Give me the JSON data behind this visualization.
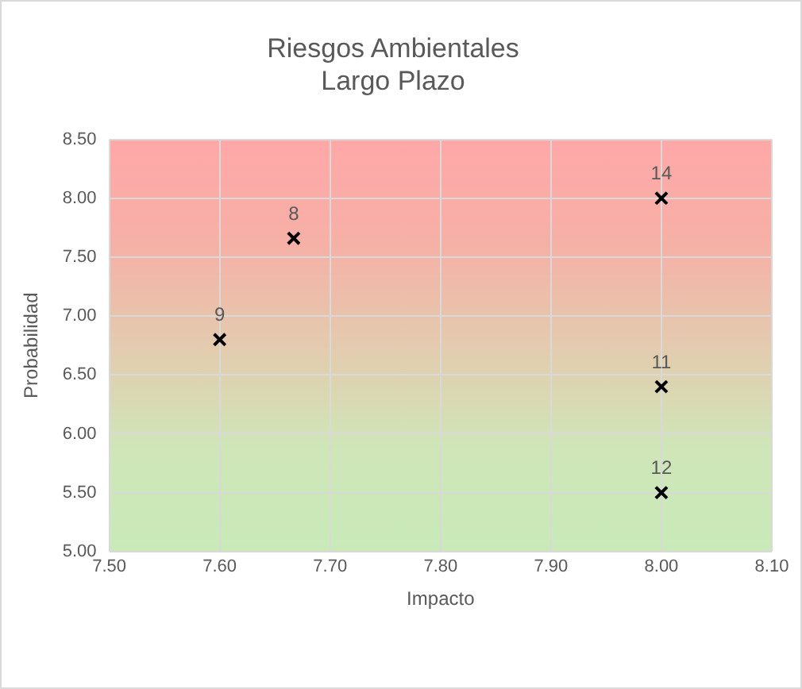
{
  "chart_data": {
    "type": "scatter",
    "title": "Riesgos Ambientales\nLargo Plazo",
    "xlabel": "Impacto",
    "ylabel": "Probabilidad",
    "x": [
      7.6,
      7.667,
      8.0,
      8.0,
      8.0
    ],
    "series": [
      {
        "color": "#000000",
        "values": [
          6.8,
          7.66,
          8.0,
          6.4,
          5.5
        ]
      }
    ],
    "xlim": [
      7.5,
      8.1
    ],
    "xticks": [
      {
        "value": 7.5,
        "label": "7.50"
      },
      {
        "value": 7.6,
        "label": "7.60"
      },
      {
        "value": 7.7,
        "label": "7.70"
      },
      {
        "value": 7.8,
        "label": "7.80"
      },
      {
        "value": 7.9,
        "label": "7.90"
      },
      {
        "value": 8.0,
        "label": "8.00"
      },
      {
        "value": 8.1,
        "label": "8.10"
      }
    ],
    "ylim": [
      5,
      8.5
    ],
    "yticks": [
      {
        "value": 5,
        "label": "5.00"
      },
      {
        "value": 5.5,
        "label": "5.50"
      },
      {
        "value": 6,
        "label": "6.00"
      },
      {
        "value": 6.5,
        "label": "6.50"
      },
      {
        "value": 7,
        "label": "7.00"
      },
      {
        "value": 7.5,
        "label": "7.50"
      },
      {
        "value": 8,
        "label": "8.00"
      },
      {
        "value": 8.5,
        "label": "8.50"
      }
    ],
    "annotations": [
      {
        "text": "9",
        "x": 7.6,
        "y": 6.8
      },
      {
        "text": "8",
        "x": 7.667,
        "y": 7.66
      },
      {
        "text": "14",
        "x": 8.0,
        "y": 8.0
      },
      {
        "text": "11",
        "x": 8.0,
        "y": 6.4
      },
      {
        "text": "12",
        "x": 8.0,
        "y": 5.5
      }
    ],
    "grid": true,
    "legend": false,
    "marker": "cross"
  }
}
